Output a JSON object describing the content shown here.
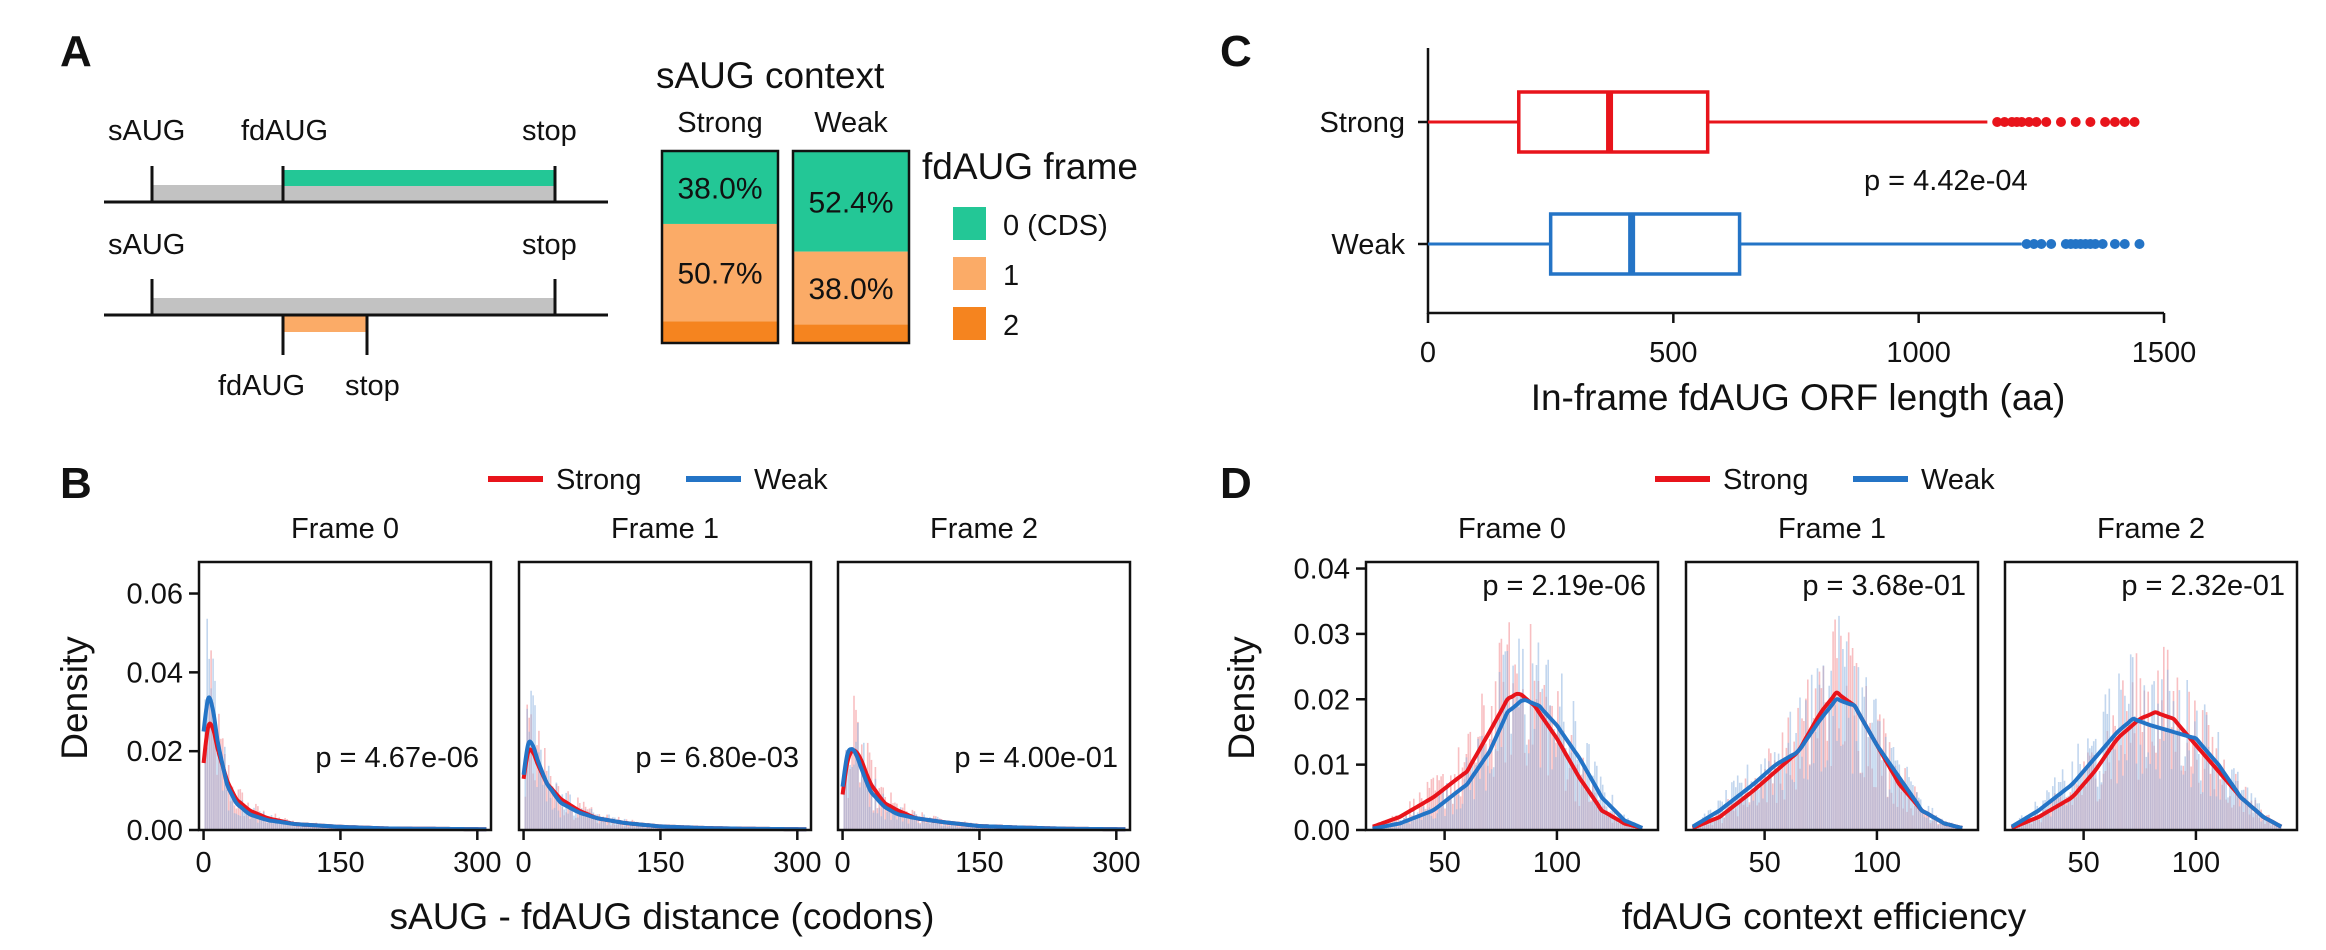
{
  "colors": {
    "strong": "#e8141b",
    "weak": "#2474c6",
    "frame0": "#23c796",
    "frame1": "#fbab67",
    "frame2": "#f5841f",
    "grey": "#c2c2c2",
    "frame": "#111111"
  },
  "panelA": {
    "letter": "A",
    "row1": {
      "saug": "sAUG",
      "fdaug": "fdAUG",
      "stop": "stop"
    },
    "row2": {
      "saug": "sAUG",
      "stop": "stop",
      "fdaug": "fdAUG",
      "stop2": "stop"
    },
    "stack_title": "sAUG context",
    "legend_title": "fdAUG frame",
    "legend": [
      "0 (CDS)",
      "1",
      "2"
    ]
  },
  "panelB": {
    "letter": "B",
    "legend": [
      "Strong",
      "Weak"
    ],
    "ylabel": "Density",
    "xlabel": "sAUG - fdAUG distance (codons)",
    "facets": [
      "Frame 0",
      "Frame 1",
      "Frame 2"
    ],
    "pvalues": [
      "p = 4.67e-06",
      "p = 6.80e-03",
      "p = 4.00e-01"
    ]
  },
  "panelC": {
    "letter": "C",
    "xlabel": "In-frame fdAUG ORF length (aa)",
    "pvalue": "p = 4.42e-04"
  },
  "panelD": {
    "letter": "D",
    "legend": [
      "Strong",
      "Weak"
    ],
    "ylabel": "Density",
    "xlabel": "fdAUG context efficiency",
    "facets": [
      "Frame 0",
      "Frame 1",
      "Frame 2"
    ],
    "pvalues": [
      "p = 2.19e-06",
      "p = 3.68e-01",
      "p = 2.32e-01"
    ]
  },
  "chart_data": [
    {
      "panel": "A",
      "type": "bar",
      "title": "sAUG context",
      "categories": [
        "Strong",
        "Weak"
      ],
      "series": [
        {
          "name": "0 (CDS)",
          "values": [
            38.0,
            52.4
          ],
          "labels": [
            "38.0%",
            "52.4%"
          ]
        },
        {
          "name": "1",
          "values": [
            50.7,
            38.0
          ],
          "labels": [
            "50.7%",
            "38.0%"
          ]
        },
        {
          "name": "2",
          "values": [
            11.3,
            9.6
          ]
        }
      ],
      "stacked": true,
      "ylim": [
        0,
        100
      ]
    },
    {
      "panel": "B",
      "type": "area",
      "xlabel": "sAUG - fdAUG distance (codons)",
      "ylabel": "Density",
      "xlim": [
        -5,
        315
      ],
      "ylim": [
        0,
        0.068
      ],
      "xticks": [
        0,
        150,
        300
      ],
      "xtick_labels": [
        "0",
        "150",
        "300"
      ],
      "yticks": [
        0,
        0.02,
        0.04,
        0.06
      ],
      "ytick_labels": [
        "0.00",
        "0.02",
        "0.04",
        "0.06"
      ],
      "facets": [
        {
          "name": "Frame 0",
          "pvalue": "p = 4.67e-06",
          "series": [
            {
              "name": "Strong",
              "x": [
                0,
                3,
                8,
                15,
                25,
                35,
                50,
                70,
                100,
                150,
                200,
                250,
                310
              ],
              "y": [
                0.017,
                0.025,
                0.028,
                0.021,
                0.013,
                0.008,
                0.005,
                0.003,
                0.0015,
                0.0008,
                0.0004,
                0.0003,
                0.0002
              ]
            },
            {
              "name": "Weak",
              "x": [
                0,
                3,
                8,
                15,
                25,
                35,
                50,
                70,
                100,
                150,
                200,
                250,
                310
              ],
              "y": [
                0.025,
                0.033,
                0.034,
                0.023,
                0.012,
                0.007,
                0.004,
                0.0025,
                0.0015,
                0.0008,
                0.0004,
                0.0003,
                0.0002
              ]
            }
          ]
        },
        {
          "name": "Frame 1",
          "pvalue": "p = 6.80e-03",
          "series": [
            {
              "name": "Strong",
              "x": [
                0,
                3,
                8,
                15,
                25,
                40,
                60,
                80,
                110,
                150,
                200,
                250,
                310
              ],
              "y": [
                0.013,
                0.019,
                0.021,
                0.017,
                0.012,
                0.008,
                0.005,
                0.003,
                0.0018,
                0.0009,
                0.0005,
                0.0003,
                0.0002
              ]
            },
            {
              "name": "Weak",
              "x": [
                0,
                3,
                8,
                15,
                25,
                40,
                60,
                80,
                110,
                150,
                200,
                250,
                310
              ],
              "y": [
                0.014,
                0.021,
                0.023,
                0.018,
                0.012,
                0.007,
                0.0045,
                0.003,
                0.0018,
                0.0009,
                0.0005,
                0.0003,
                0.0002
              ]
            }
          ]
        },
        {
          "name": "Frame 2",
          "pvalue": "p = 4.00e-01",
          "series": [
            {
              "name": "Strong",
              "x": [
                0,
                5,
                12,
                20,
                30,
                45,
                60,
                80,
                110,
                150,
                200,
                250,
                310
              ],
              "y": [
                0.009,
                0.017,
                0.021,
                0.018,
                0.012,
                0.007,
                0.005,
                0.003,
                0.002,
                0.001,
                0.0006,
                0.0003,
                0.0002
              ]
            },
            {
              "name": "Weak",
              "x": [
                0,
                5,
                12,
                20,
                30,
                45,
                60,
                80,
                110,
                150,
                200,
                250,
                310
              ],
              "y": [
                0.011,
                0.019,
                0.021,
                0.016,
                0.01,
                0.006,
                0.004,
                0.003,
                0.002,
                0.001,
                0.0006,
                0.0003,
                0.0002
              ]
            }
          ]
        }
      ]
    },
    {
      "panel": "C",
      "type": "box",
      "xlabel": "In-frame fdAUG ORF length (aa)",
      "xlim": [
        0,
        1500
      ],
      "xticks": [
        0,
        500,
        1000,
        1500
      ],
      "xtick_labels": [
        "0",
        "500",
        "1000",
        "1500"
      ],
      "categories": [
        "Strong",
        "Weak"
      ],
      "pvalue": "p = 4.42e-04",
      "series": [
        {
          "name": "Strong",
          "min": 0,
          "q1": 185,
          "median": 370,
          "q3": 570,
          "max": 1140,
          "outliers": [
            1160,
            1175,
            1190,
            1200,
            1210,
            1225,
            1240,
            1260,
            1290,
            1320,
            1350,
            1380,
            1400,
            1420,
            1440
          ]
        },
        {
          "name": "Weak",
          "min": 0,
          "q1": 250,
          "median": 415,
          "q3": 635,
          "max": 1210,
          "outliers": [
            1220,
            1235,
            1250,
            1270,
            1300,
            1310,
            1320,
            1330,
            1340,
            1350,
            1360,
            1375,
            1400,
            1420,
            1450
          ]
        }
      ]
    },
    {
      "panel": "D",
      "type": "area",
      "xlabel": "fdAUG context efficiency",
      "ylabel": "Density",
      "xlim": [
        15,
        145
      ],
      "ylim": [
        0,
        0.041
      ],
      "xticks": [
        50,
        100
      ],
      "xtick_labels": [
        "50",
        "100"
      ],
      "yticks": [
        0,
        0.01,
        0.02,
        0.03,
        0.04
      ],
      "ytick_labels": [
        "0.00",
        "0.01",
        "0.02",
        "0.03",
        "0.04"
      ],
      "facets": [
        {
          "name": "Frame 0",
          "pvalue": "p = 2.19e-06",
          "series": [
            {
              "name": "Strong",
              "x": [
                18,
                30,
                45,
                60,
                70,
                78,
                83,
                90,
                100,
                110,
                120,
                130,
                138
              ],
              "y": [
                0.0005,
                0.002,
                0.005,
                0.009,
                0.015,
                0.02,
                0.021,
                0.019,
                0.014,
                0.008,
                0.003,
                0.001,
                0.0003
              ]
            },
            {
              "name": "Weak",
              "x": [
                18,
                30,
                45,
                60,
                70,
                78,
                85,
                92,
                100,
                110,
                120,
                130,
                138
              ],
              "y": [
                0.0002,
                0.001,
                0.003,
                0.007,
                0.012,
                0.018,
                0.02,
                0.019,
                0.016,
                0.011,
                0.005,
                0.0015,
                0.0003
              ]
            }
          ]
        },
        {
          "name": "Frame 1",
          "pvalue": "p = 3.68e-01",
          "series": [
            {
              "name": "Strong",
              "x": [
                18,
                30,
                45,
                55,
                65,
                75,
                82,
                90,
                100,
                110,
                120,
                130,
                138
              ],
              "y": [
                0.0003,
                0.002,
                0.006,
                0.009,
                0.012,
                0.018,
                0.021,
                0.019,
                0.013,
                0.007,
                0.003,
                0.001,
                0.0003
              ]
            },
            {
              "name": "Weak",
              "x": [
                18,
                30,
                45,
                55,
                65,
                75,
                82,
                90,
                100,
                110,
                120,
                130,
                138
              ],
              "y": [
                0.0005,
                0.003,
                0.007,
                0.01,
                0.012,
                0.017,
                0.02,
                0.019,
                0.013,
                0.008,
                0.003,
                0.001,
                0.0003
              ]
            }
          ]
        },
        {
          "name": "Frame 2",
          "pvalue": "p = 2.32e-01",
          "series": [
            {
              "name": "Strong",
              "x": [
                18,
                30,
                45,
                55,
                65,
                75,
                82,
                90,
                100,
                110,
                120,
                130,
                138
              ],
              "y": [
                0.0003,
                0.002,
                0.005,
                0.009,
                0.014,
                0.017,
                0.018,
                0.017,
                0.013,
                0.009,
                0.005,
                0.002,
                0.0005
              ]
            },
            {
              "name": "Weak",
              "x": [
                18,
                30,
                45,
                55,
                65,
                72,
                80,
                90,
                100,
                110,
                120,
                130,
                138
              ],
              "y": [
                0.0005,
                0.003,
                0.007,
                0.011,
                0.015,
                0.017,
                0.016,
                0.015,
                0.014,
                0.01,
                0.005,
                0.002,
                0.0005
              ]
            }
          ]
        }
      ]
    }
  ]
}
